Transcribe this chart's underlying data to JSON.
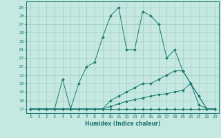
{
  "xlabel": "Humidex (Indice chaleur)",
  "bg_color": "#c5e8e0",
  "line_color": "#1a7870",
  "grid_color": "#9ecdc5",
  "xlim": [
    -0.5,
    23.5
  ],
  "ylim": [
    16.5,
    29.7
  ],
  "xticks": [
    0,
    1,
    2,
    3,
    4,
    5,
    6,
    7,
    8,
    9,
    10,
    11,
    12,
    13,
    14,
    15,
    16,
    17,
    18,
    19,
    20,
    21,
    22,
    23
  ],
  "yticks": [
    17,
    18,
    19,
    20,
    21,
    22,
    23,
    24,
    25,
    26,
    27,
    28,
    29
  ],
  "lines": [
    {
      "x": [
        0,
        1,
        2,
        3,
        4,
        5,
        6,
        7,
        8,
        9,
        10,
        11,
        12,
        13,
        14,
        15,
        16,
        17,
        18,
        19,
        20,
        21,
        22,
        23
      ],
      "y": [
        17,
        17,
        17,
        17,
        17,
        17,
        17,
        17,
        17,
        17,
        17,
        17,
        17,
        17,
        17,
        17,
        17,
        17,
        17,
        17,
        17,
        17,
        17,
        17
      ]
    },
    {
      "x": [
        0,
        1,
        2,
        3,
        4,
        5,
        6,
        7,
        8,
        9,
        10,
        11,
        12,
        13,
        14,
        15,
        16,
        17,
        18,
        19,
        20,
        21,
        22,
        23
      ],
      "y": [
        17,
        17,
        17,
        17,
        17,
        17,
        17,
        17,
        17,
        17,
        17.3,
        17.6,
        17.9,
        18.1,
        18.3,
        18.5,
        18.7,
        18.8,
        19.0,
        19.2,
        20.0,
        17.5,
        17,
        17
      ]
    },
    {
      "x": [
        0,
        1,
        2,
        3,
        4,
        5,
        6,
        7,
        8,
        9,
        10,
        11,
        12,
        13,
        14,
        15,
        16,
        17,
        18,
        19,
        20,
        21,
        22,
        23
      ],
      "y": [
        17,
        17,
        17,
        17,
        17,
        17,
        17,
        17,
        17,
        17,
        18,
        18.5,
        19,
        19.5,
        20,
        20,
        20.5,
        21,
        21.5,
        21.5,
        20,
        18.5,
        17,
        17
      ]
    },
    {
      "x": [
        0,
        1,
        2,
        3,
        4,
        5,
        6,
        7,
        8,
        9,
        10,
        11,
        12,
        13,
        14,
        15,
        16,
        17,
        18,
        19,
        20,
        21,
        22,
        23
      ],
      "y": [
        17,
        17,
        17,
        17,
        20.5,
        17,
        20,
        22,
        22.5,
        25.5,
        28,
        29,
        24,
        24,
        28.5,
        28,
        27,
        23,
        24,
        21.5,
        20,
        18.5,
        17,
        17
      ]
    }
  ]
}
